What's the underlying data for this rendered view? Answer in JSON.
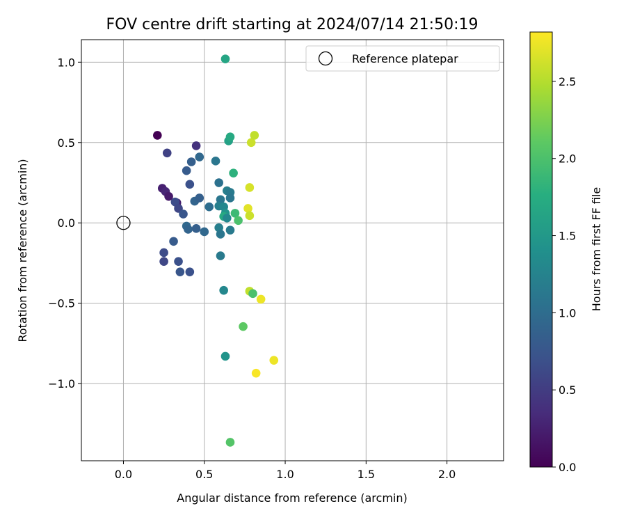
{
  "chart_data": {
    "type": "scatter",
    "title": "FOV centre drift starting at 2024/07/14 21:50:19",
    "xlabel": "Angular distance from reference (arcmin)",
    "ylabel": "Rotation from reference (arcmin)",
    "xlim": [
      -0.26,
      2.35
    ],
    "ylim": [
      -1.48,
      1.14
    ],
    "xticks": [
      0.0,
      0.5,
      1.0,
      1.5,
      2.0
    ],
    "xtick_labels": [
      "0.0",
      "0.5",
      "1.0",
      "1.5",
      "2.0"
    ],
    "yticks": [
      -1.0,
      -0.5,
      0.0,
      0.5,
      1.0
    ],
    "ytick_labels": [
      "−1.0",
      "−0.5",
      "0.0",
      "0.5",
      "1.0"
    ],
    "grid": true,
    "legend": {
      "position": "top-right",
      "entries": [
        "Reference platepar"
      ]
    },
    "reference_point": {
      "x": 0.0,
      "y": 0.0
    },
    "colorbar": {
      "label": "Hours from first FF file",
      "colormap": "viridis",
      "range": [
        0.0,
        2.82
      ],
      "ticks": [
        0.0,
        0.5,
        1.0,
        1.5,
        2.0,
        2.5
      ],
      "tick_labels": [
        "0.0",
        "0.5",
        "1.0",
        "1.5",
        "2.0",
        "2.5"
      ]
    },
    "points": [
      {
        "x": 0.21,
        "y": 0.545,
        "c": 0.0
      },
      {
        "x": 0.24,
        "y": 0.215,
        "c": 0.25
      },
      {
        "x": 0.26,
        "y": 0.195,
        "c": 0.3
      },
      {
        "x": 0.28,
        "y": 0.165,
        "c": 0.2
      },
      {
        "x": 0.33,
        "y": 0.125,
        "c": 0.25
      },
      {
        "x": 0.27,
        "y": 0.435,
        "c": 0.55
      },
      {
        "x": 0.45,
        "y": 0.48,
        "c": 0.4
      },
      {
        "x": 0.32,
        "y": 0.13,
        "c": 0.65
      },
      {
        "x": 0.34,
        "y": 0.09,
        "c": 0.6
      },
      {
        "x": 0.37,
        "y": 0.055,
        "c": 0.75
      },
      {
        "x": 0.39,
        "y": 0.325,
        "c": 0.8
      },
      {
        "x": 0.42,
        "y": 0.38,
        "c": 0.85
      },
      {
        "x": 0.47,
        "y": 0.41,
        "c": 0.95
      },
      {
        "x": 0.41,
        "y": 0.24,
        "c": 0.7
      },
      {
        "x": 0.44,
        "y": 0.135,
        "c": 0.9
      },
      {
        "x": 0.47,
        "y": 0.155,
        "c": 0.85
      },
      {
        "x": 0.53,
        "y": 0.1,
        "c": 1.0
      },
      {
        "x": 0.57,
        "y": 0.385,
        "c": 1.1
      },
      {
        "x": 0.59,
        "y": 0.25,
        "c": 1.05
      },
      {
        "x": 0.6,
        "y": 0.145,
        "c": 1.1
      },
      {
        "x": 0.59,
        "y": 0.105,
        "c": 1.2
      },
      {
        "x": 0.62,
        "y": 0.1,
        "c": 1.3
      },
      {
        "x": 0.64,
        "y": 0.2,
        "c": 1.2
      },
      {
        "x": 0.66,
        "y": 0.19,
        "c": 1.15
      },
      {
        "x": 0.66,
        "y": 0.155,
        "c": 1.1
      },
      {
        "x": 0.63,
        "y": 0.06,
        "c": 1.45
      },
      {
        "x": 0.62,
        "y": 0.04,
        "c": 1.7
      },
      {
        "x": 0.64,
        "y": 0.03,
        "c": 1.3
      },
      {
        "x": 0.69,
        "y": 0.06,
        "c": 1.9
      },
      {
        "x": 0.71,
        "y": 0.015,
        "c": 2.0
      },
      {
        "x": 0.65,
        "y": 0.51,
        "c": 1.6
      },
      {
        "x": 0.66,
        "y": 0.535,
        "c": 1.7
      },
      {
        "x": 0.68,
        "y": 0.31,
        "c": 1.8
      },
      {
        "x": 0.63,
        "y": 1.02,
        "c": 1.65
      },
      {
        "x": 0.39,
        "y": -0.02,
        "c": 0.95
      },
      {
        "x": 0.4,
        "y": -0.04,
        "c": 0.9
      },
      {
        "x": 0.45,
        "y": -0.035,
        "c": 0.85
      },
      {
        "x": 0.5,
        "y": -0.055,
        "c": 0.95
      },
      {
        "x": 0.59,
        "y": -0.03,
        "c": 1.2
      },
      {
        "x": 0.6,
        "y": -0.07,
        "c": 1.1
      },
      {
        "x": 0.66,
        "y": -0.045,
        "c": 1.15
      },
      {
        "x": 0.31,
        "y": -0.115,
        "c": 0.8
      },
      {
        "x": 0.25,
        "y": -0.185,
        "c": 0.65
      },
      {
        "x": 0.25,
        "y": -0.24,
        "c": 0.6
      },
      {
        "x": 0.34,
        "y": -0.24,
        "c": 0.7
      },
      {
        "x": 0.35,
        "y": -0.305,
        "c": 0.75
      },
      {
        "x": 0.41,
        "y": -0.305,
        "c": 0.7
      },
      {
        "x": 0.6,
        "y": -0.205,
        "c": 1.15
      },
      {
        "x": 0.62,
        "y": -0.42,
        "c": 1.3
      },
      {
        "x": 0.79,
        "y": 0.5,
        "c": 2.6
      },
      {
        "x": 0.81,
        "y": 0.545,
        "c": 2.55
      },
      {
        "x": 0.78,
        "y": 0.22,
        "c": 2.65
      },
      {
        "x": 0.77,
        "y": 0.09,
        "c": 2.7
      },
      {
        "x": 0.78,
        "y": 0.045,
        "c": 2.6
      },
      {
        "x": 0.78,
        "y": -0.425,
        "c": 2.55
      },
      {
        "x": 0.8,
        "y": -0.44,
        "c": 2.0
      },
      {
        "x": 0.85,
        "y": -0.475,
        "c": 2.75
      },
      {
        "x": 0.74,
        "y": -0.645,
        "c": 2.1
      },
      {
        "x": 0.63,
        "y": -0.83,
        "c": 1.45
      },
      {
        "x": 0.93,
        "y": -0.855,
        "c": 2.75
      },
      {
        "x": 0.82,
        "y": -0.935,
        "c": 2.8
      },
      {
        "x": 0.66,
        "y": -1.365,
        "c": 2.05
      }
    ]
  }
}
